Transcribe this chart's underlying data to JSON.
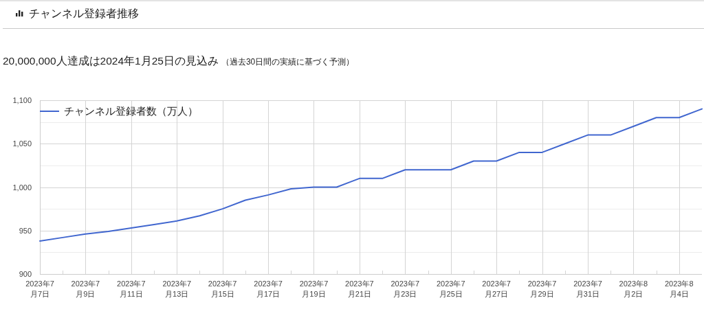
{
  "chart_data": {
    "type": "line",
    "title": "チャンネル登録者推移",
    "subtitle": "20,000,000人達成は2024年1月25日の見込み",
    "annotations": [
      "（過去30日間の実績に基づく予測）"
    ],
    "x": [
      "2023-07-07",
      "2023-07-08",
      "2023-07-09",
      "2023-07-10",
      "2023-07-11",
      "2023-07-12",
      "2023-07-13",
      "2023-07-14",
      "2023-07-15",
      "2023-07-16",
      "2023-07-17",
      "2023-07-18",
      "2023-07-19",
      "2023-07-20",
      "2023-07-21",
      "2023-07-22",
      "2023-07-23",
      "2023-07-24",
      "2023-07-25",
      "2023-07-26",
      "2023-07-27",
      "2023-07-28",
      "2023-07-29",
      "2023-07-30",
      "2023-07-31",
      "2023-08-01",
      "2023-08-02",
      "2023-08-03",
      "2023-08-04",
      "2023-08-05"
    ],
    "series": [
      {
        "name": "チャンネル登録者数（万人）",
        "color": "#4066cf",
        "values": [
          938,
          942,
          946,
          949,
          953,
          957,
          961,
          967,
          975,
          985,
          991,
          998,
          1000,
          1000,
          1010,
          1010,
          1020,
          1020,
          1020,
          1030,
          1030,
          1040,
          1040,
          1050,
          1060,
          1060,
          1070,
          1080,
          1080,
          1090
        ]
      }
    ],
    "xlim": [
      "2023-07-07",
      "2023-08-05"
    ],
    "xticks": [
      {
        "value": "2023-07-07",
        "label": "2023年7月7日"
      },
      {
        "value": "2023-07-08",
        "label": null
      },
      {
        "value": "2023-07-09",
        "label": "2023年7月9日"
      },
      {
        "value": "2023-07-10",
        "label": null
      },
      {
        "value": "2023-07-11",
        "label": "2023年7月11日"
      },
      {
        "value": "2023-07-12",
        "label": null
      },
      {
        "value": "2023-07-13",
        "label": "2023年7月13日"
      },
      {
        "value": "2023-07-14",
        "label": null
      },
      {
        "value": "2023-07-15",
        "label": "2023年7月15日"
      },
      {
        "value": "2023-07-16",
        "label": null
      },
      {
        "value": "2023-07-17",
        "label": "2023年7月17日"
      },
      {
        "value": "2023-07-18",
        "label": null
      },
      {
        "value": "2023-07-19",
        "label": "2023年7月19日"
      },
      {
        "value": "2023-07-20",
        "label": null
      },
      {
        "value": "2023-07-21",
        "label": "2023年7月21日"
      },
      {
        "value": "2023-07-22",
        "label": null
      },
      {
        "value": "2023-07-23",
        "label": "2023年7月23日"
      },
      {
        "value": "2023-07-24",
        "label": null
      },
      {
        "value": "2023-07-25",
        "label": "2023年7月25日"
      },
      {
        "value": "2023-07-26",
        "label": null
      },
      {
        "value": "2023-07-27",
        "label": "2023年7月27日"
      },
      {
        "value": "2023-07-28",
        "label": null
      },
      {
        "value": "2023-07-29",
        "label": "2023年7月29日"
      },
      {
        "value": "2023-07-30",
        "label": null
      },
      {
        "value": "2023-07-31",
        "label": "2023年7月31日"
      },
      {
        "value": "2023-08-01",
        "label": null
      },
      {
        "value": "2023-08-02",
        "label": "2023年8月2日"
      },
      {
        "value": "2023-08-03",
        "label": null
      },
      {
        "value": "2023-08-04",
        "label": "2023年8月4日"
      }
    ],
    "ylim": [
      900,
      1100
    ],
    "yticks": [
      900,
      {
        "value": 925,
        "label": null
      },
      950,
      {
        "value": 975,
        "label": null
      },
      {
        "value": 1000,
        "label": "1,000"
      },
      {
        "value": 1025,
        "label": null
      },
      {
        "value": 1050,
        "label": "1,050"
      },
      {
        "value": 1075,
        "label": null
      },
      {
        "value": 1100,
        "label": "1,100"
      }
    ],
    "grid": true,
    "legend": "top left",
    "line_style": "solid"
  }
}
